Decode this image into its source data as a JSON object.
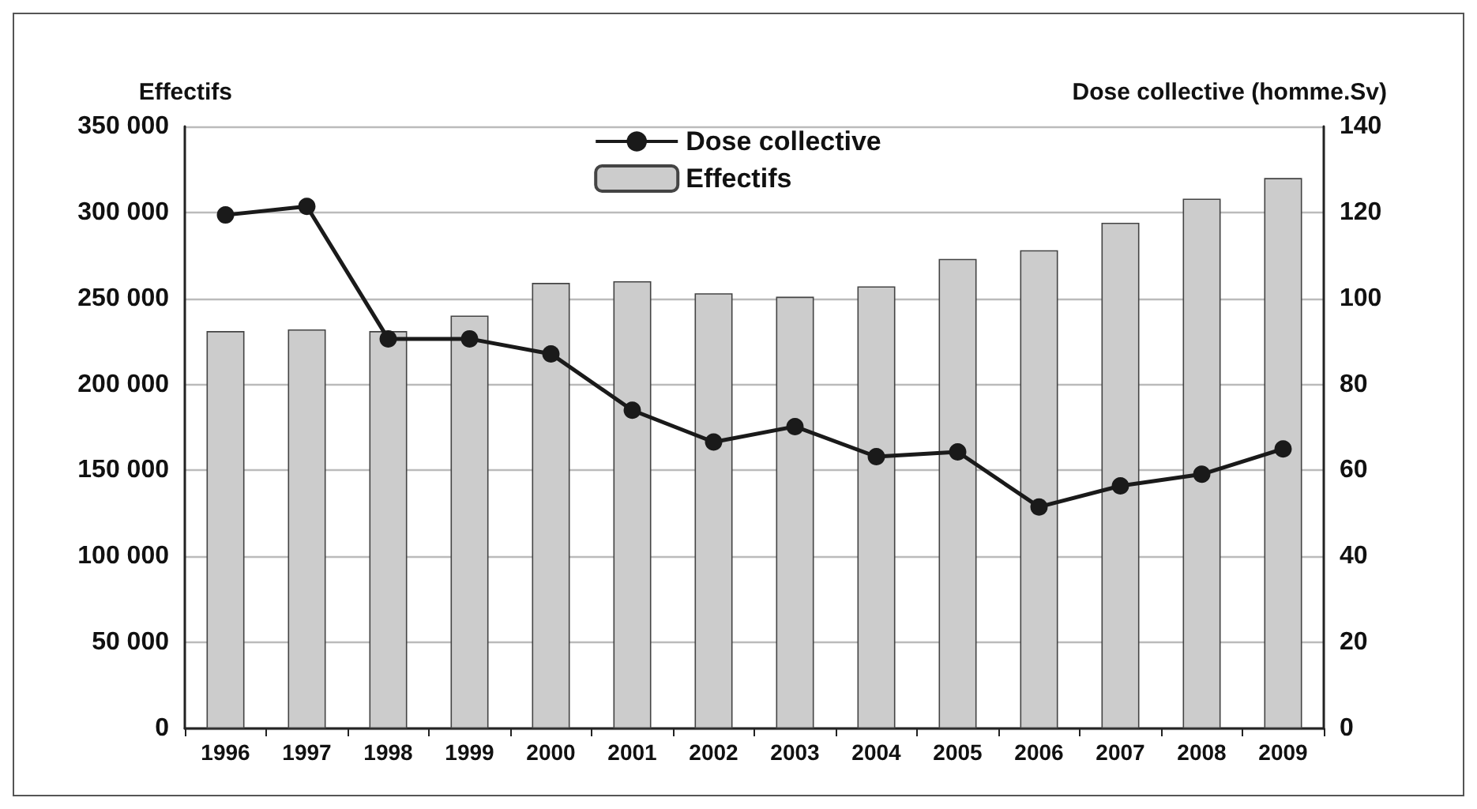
{
  "chart_data": {
    "type": "bar",
    "categories": [
      "1996",
      "1997",
      "1998",
      "1999",
      "2000",
      "2001",
      "2002",
      "2003",
      "2004",
      "2005",
      "2006",
      "2007",
      "2008",
      "2009"
    ],
    "series": [
      {
        "name": "Dose collective",
        "type": "line",
        "axis": "y2",
        "color": "#1a1a1a",
        "marker": "circle",
        "values": [
          119.4,
          121.4,
          90.6,
          90.6,
          87.1,
          74,
          66.6,
          70.2,
          63.2,
          64.3,
          51.5,
          56.4,
          59.1,
          65
        ]
      },
      {
        "name": "Effectifs",
        "color": "#cccccc",
        "values": [
          231000,
          232000,
          231000,
          240000,
          259000,
          260000,
          253000,
          251000,
          257000,
          273000,
          278000,
          294000,
          308000,
          320000
        ]
      }
    ],
    "ylabel": "Effectifs",
    "y2label": "Dose collective (homme.Sv)",
    "ylim": [
      0,
      350000
    ],
    "yticks": [
      0,
      {
        "value": 50000,
        "label": "50 000"
      },
      {
        "value": 100000,
        "label": "100 000"
      },
      {
        "value": 150000,
        "label": "150 000"
      },
      {
        "value": 200000,
        "label": "200 000"
      },
      {
        "value": 250000,
        "label": "250 000"
      },
      {
        "value": 300000,
        "label": "300 000"
      },
      {
        "value": 350000,
        "label": "350 000"
      }
    ],
    "y2lim": [
      0,
      140
    ],
    "y2ticks": [
      0,
      20,
      40,
      60,
      80,
      100,
      120,
      140
    ],
    "grid": "y",
    "legend": "top"
  }
}
